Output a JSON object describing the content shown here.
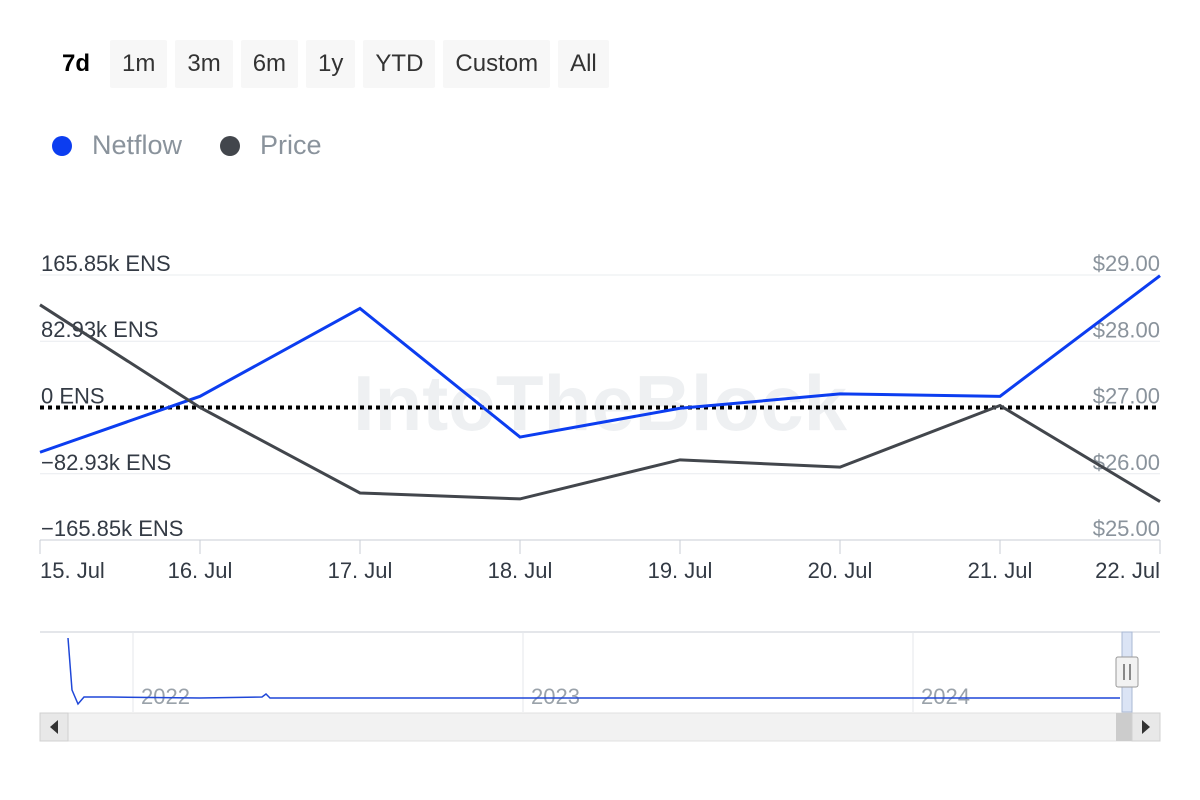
{
  "range_selector": {
    "buttons": [
      "7d",
      "1m",
      "3m",
      "6m",
      "1y",
      "YTD",
      "Custom",
      "All"
    ],
    "active": "7d"
  },
  "colors": {
    "netflow": "#0c3df0",
    "price": "#42464c",
    "axis_text_left": "#333a44",
    "axis_text_right": "#8a939c",
    "grid": "#e9ecef",
    "zero_line": "#000000"
  },
  "chart_data": {
    "type": "line",
    "categories": [
      "15. Jul",
      "16. Jul",
      "17. Jul",
      "18. Jul",
      "19. Jul",
      "20. Jul",
      "21. Jul",
      "22. Jul"
    ],
    "series": [
      {
        "name": "Netflow",
        "axis": "left",
        "values": [
          -56000,
          14000,
          124000,
          -37000,
          -1000,
          17000,
          14000,
          165000
        ]
      },
      {
        "name": "Price",
        "axis": "right",
        "values": [
          28.55,
          27.0,
          25.71,
          25.62,
          26.21,
          26.1,
          27.03,
          25.58
        ]
      }
    ],
    "y_left": {
      "ticks": [
        165850,
        82930,
        0,
        -82930,
        -165850
      ],
      "tick_labels": [
        "165.85k ENS",
        "82.93k ENS",
        "0 ENS",
        "−82.93k ENS",
        "−165.85k ENS"
      ],
      "ylim": [
        -165850,
        165850
      ]
    },
    "y_right": {
      "ticks": [
        29,
        28,
        27,
        26,
        25
      ],
      "tick_labels": [
        "$29.00",
        "$28.00",
        "$27.00",
        "$26.00",
        "$25.00"
      ],
      "ylim": [
        25,
        29
      ]
    },
    "grid": true,
    "legend": "top-left",
    "watermark": "IntoTheBlock"
  },
  "navigator": {
    "year_labels": [
      "2022",
      "2023",
      "2024"
    ]
  }
}
